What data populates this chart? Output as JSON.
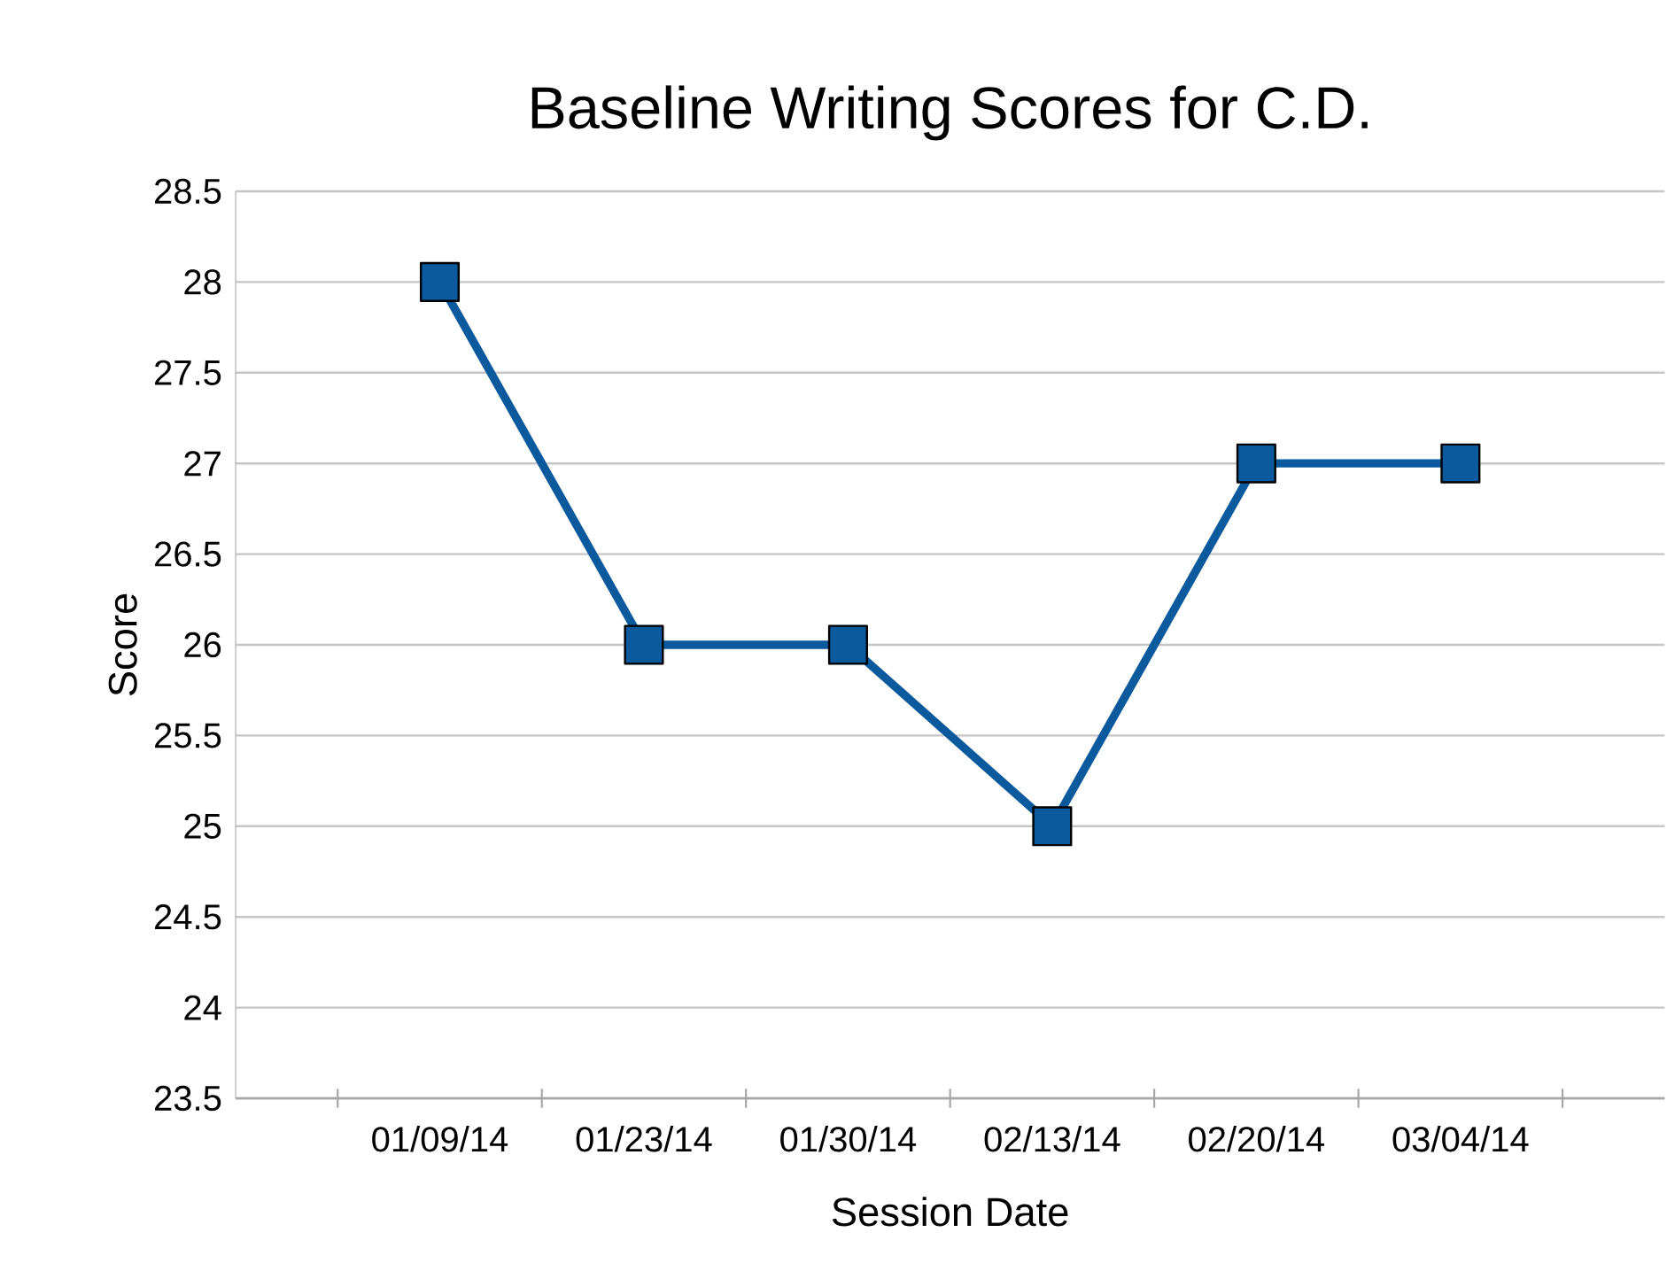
{
  "chart_data": {
    "type": "line",
    "title": "Baseline Writing Scores for C.D.",
    "xlabel": "Session Date",
    "ylabel": "Score",
    "categories": [
      "01/09/14",
      "01/23/14",
      "01/30/14",
      "02/13/14",
      "02/20/14",
      "03/04/14"
    ],
    "values": [
      28,
      26,
      26,
      25,
      27,
      27
    ],
    "color": "#0b5a9e",
    "ylim": [
      23.5,
      28.5
    ],
    "yticks": [
      23.5,
      24,
      24.5,
      25,
      25.5,
      26,
      26.5,
      27,
      27.5,
      28,
      28.5
    ],
    "grid": "y",
    "marker": "square",
    "line_style": "solid",
    "legend": false
  }
}
